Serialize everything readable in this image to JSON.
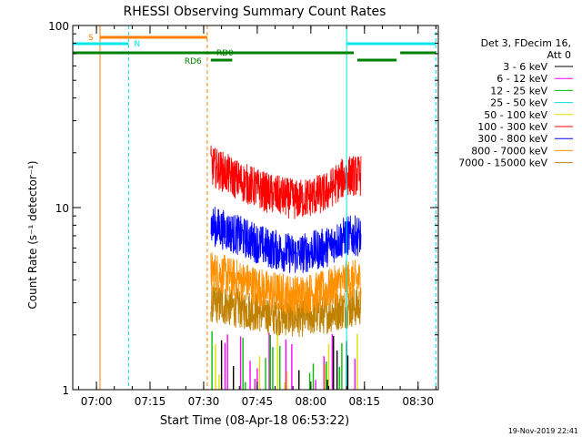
{
  "chart_data": {
    "type": "line",
    "title": "RHESSI Observing Summary Count Rates",
    "xlabel": "Start Time (08-Apr-18 06:53:22)",
    "ylabel": "Count Rate (s⁻¹ detector⁻¹)",
    "yscale": "log",
    "xlim": [
      "06:53:22",
      "08:35:40"
    ],
    "ylim": [
      1,
      100
    ],
    "x_ticks": [
      "07:00",
      "07:15",
      "07:30",
      "07:45",
      "08:00",
      "08:15",
      "08:30"
    ],
    "y_ticks": [
      "1",
      "10",
      "100"
    ],
    "grid": false,
    "legend_position": "right",
    "legend": {
      "header": "Det 3, FDecim 16,",
      "header2": "Att 0",
      "entries": [
        {
          "label": "3 - 6 keV",
          "color": "#000000"
        },
        {
          "label": "6 - 12 keV",
          "color": "#ff00ff"
        },
        {
          "label": "12 - 25 keV",
          "color": "#00c000"
        },
        {
          "label": "25 - 50 keV",
          "color": "#00e0e0"
        },
        {
          "label": "50 - 100 keV",
          "color": "#e0e000"
        },
        {
          "label": "100 - 300 keV",
          "color": "#ff0000"
        },
        {
          "label": "300 - 800 keV",
          "color": "#0000ff"
        },
        {
          "label": "800 - 7000 keV",
          "color": "#ff9000"
        },
        {
          "label": "7000 - 15000 keV",
          "color": "#c08000"
        }
      ]
    },
    "series": [
      {
        "name": "100 - 300 keV",
        "color": "#ff0000",
        "x": [
          "07:32",
          "07:40",
          "07:48",
          "07:56",
          "08:04",
          "08:10",
          "08:14"
        ],
        "values": [
          17,
          14,
          12,
          11,
          12,
          15,
          15
        ]
      },
      {
        "name": "300 - 800 keV",
        "color": "#0000ff",
        "x": [
          "07:32",
          "07:40",
          "07:48",
          "07:56",
          "08:04",
          "08:10",
          "08:14"
        ],
        "values": [
          8,
          7,
          6,
          5.5,
          6,
          7,
          7
        ]
      },
      {
        "name": "800 - 7000 keV",
        "color": "#ff9000",
        "x": [
          "07:32",
          "07:40",
          "07:48",
          "07:56",
          "08:04",
          "08:10",
          "08:14"
        ],
        "values": [
          4.5,
          4,
          3.5,
          3.3,
          3.5,
          4,
          4
        ]
      },
      {
        "name": "7000 - 15000 keV",
        "color": "#c08000",
        "x": [
          "07:32",
          "07:40",
          "07:48",
          "07:56",
          "08:04",
          "08:10",
          "08:14"
        ],
        "values": [
          3,
          2.8,
          2.6,
          2.5,
          2.6,
          2.8,
          2.9
        ]
      }
    ],
    "flags": [
      {
        "label": "S",
        "color": "#ff8000",
        "x_start": "07:01",
        "x_end": "07:31"
      },
      {
        "label": "N",
        "color": "#00e8e8",
        "x_start": "06:53:22",
        "x_end": "07:09"
      },
      {
        "label": "",
        "color": "#00e8e8",
        "x_start": "08:10",
        "x_end": "08:35"
      },
      {
        "label": "RD0",
        "color": "#008000",
        "x_start": "06:53:22",
        "x_end": "08:12"
      },
      {
        "label": "",
        "color": "#008000",
        "x_start": "08:13",
        "x_end": "08:24"
      },
      {
        "label": "",
        "color": "#008000",
        "x_start": "08:25",
        "x_end": "08:35"
      },
      {
        "label": "RD6",
        "color": "#008000",
        "x_start": "07:32",
        "x_end": "07:36"
      },
      {
        "label": "",
        "color": "#008000",
        "x_start": "07:36",
        "x_end": "07:38"
      }
    ],
    "vertical_lines": [
      {
        "x": "07:01",
        "color": "#ff8000",
        "style": "solid"
      },
      {
        "x": "07:09",
        "color": "#00e8e8",
        "style": "dashed"
      },
      {
        "x": "07:31",
        "color": "#ff8000",
        "style": "dashed"
      },
      {
        "x": "08:10",
        "color": "#00e8e8",
        "style": "solid"
      },
      {
        "x": "08:35",
        "color": "#00e8e8",
        "style": "dashed"
      },
      {
        "x": "06:53:22",
        "color": "#00e8e8",
        "style": "solid"
      }
    ],
    "timestamp": "19-Nov-2019 22:41"
  }
}
